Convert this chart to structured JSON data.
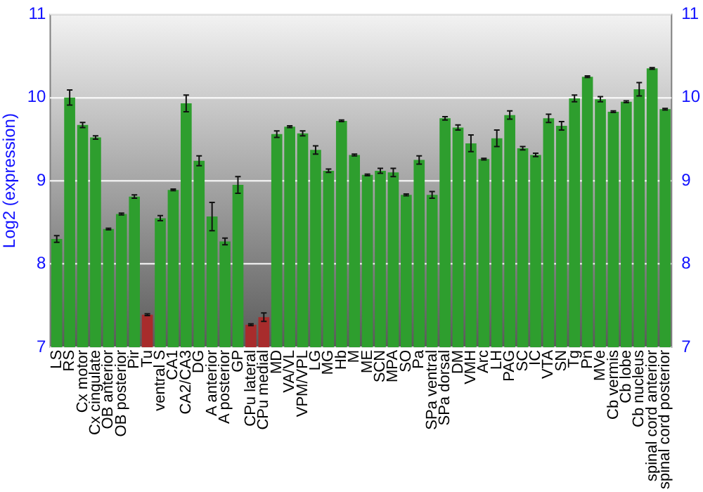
{
  "chart_data": {
    "type": "bar",
    "ylabel": "Log2 (expression)",
    "categories": [
      "LS",
      "RS",
      "Cx motor",
      "Cx cingulate",
      "OB anterior",
      "OB posterior",
      "Pir",
      "Tu",
      "ventral S",
      "CA1",
      "CA2/CA3",
      "DG",
      "A anterior",
      "A posterior",
      "GP",
      "CPu lateral",
      "CPu medial",
      "MD",
      "VA/VL",
      "VPM/VPL",
      "LG",
      "MG",
      "Hb",
      "M",
      "ME",
      "SCN",
      "MPA",
      "SO",
      "Pa",
      "SPa ventral",
      "SPa dorsal",
      "DM",
      "VMH",
      "Arc",
      "LH",
      "PAG",
      "SC",
      "IC",
      "VTA",
      "SN",
      "Tg",
      "Pn",
      "MVe",
      "Cb vermis",
      "Cb lobe",
      "Cb nucleus",
      "spinal cord anterior",
      "spinal cord posterior"
    ],
    "values": [
      8.3,
      10.0,
      9.67,
      9.52,
      8.42,
      8.6,
      8.81,
      7.39,
      8.55,
      8.89,
      9.93,
      9.24,
      8.57,
      8.27,
      8.95,
      7.27,
      7.36,
      9.56,
      9.65,
      9.57,
      9.37,
      9.12,
      9.72,
      9.31,
      9.07,
      9.12,
      9.1,
      8.83,
      9.25,
      8.83,
      9.75,
      9.64,
      9.45,
      9.26,
      9.51,
      9.79,
      9.39,
      9.31,
      9.75,
      9.66,
      9.99,
      10.25,
      9.98,
      9.83,
      9.95,
      10.1,
      10.35,
      9.86
    ],
    "errors": [
      0.04,
      0.09,
      0.03,
      0.02,
      0.01,
      0.01,
      0.02,
      0.01,
      0.03,
      0.01,
      0.1,
      0.06,
      0.17,
      0.04,
      0.1,
      0.01,
      0.05,
      0.04,
      0.01,
      0.03,
      0.05,
      0.02,
      0.01,
      0.01,
      0.01,
      0.03,
      0.05,
      0.01,
      0.05,
      0.04,
      0.02,
      0.03,
      0.1,
      0.01,
      0.1,
      0.05,
      0.02,
      0.02,
      0.05,
      0.05,
      0.04,
      0.01,
      0.03,
      0.01,
      0.01,
      0.08,
      0.01,
      0.01
    ],
    "colors": [
      "#2e9e2e",
      "#2e9e2e",
      "#2e9e2e",
      "#2e9e2e",
      "#2e9e2e",
      "#2e9e2e",
      "#2e9e2e",
      "#a82c2c",
      "#2e9e2e",
      "#2e9e2e",
      "#2e9e2e",
      "#2e9e2e",
      "#2e9e2e",
      "#2e9e2e",
      "#2e9e2e",
      "#a82c2c",
      "#a82c2c",
      "#2e9e2e",
      "#2e9e2e",
      "#2e9e2e",
      "#2e9e2e",
      "#2e9e2e",
      "#2e9e2e",
      "#2e9e2e",
      "#2e9e2e",
      "#2e9e2e",
      "#2e9e2e",
      "#2e9e2e",
      "#2e9e2e",
      "#2e9e2e",
      "#2e9e2e",
      "#2e9e2e",
      "#2e9e2e",
      "#2e9e2e",
      "#2e9e2e",
      "#2e9e2e",
      "#2e9e2e",
      "#2e9e2e",
      "#2e9e2e",
      "#2e9e2e",
      "#2e9e2e",
      "#2e9e2e",
      "#2e9e2e",
      "#2e9e2e",
      "#2e9e2e",
      "#2e9e2e",
      "#2e9e2e",
      "#2e9e2e"
    ],
    "ylim": [
      7,
      11
    ],
    "yticks": [
      7,
      8,
      9,
      10,
      11
    ],
    "y2lim": [
      7,
      11
    ],
    "y2ticks": [
      7,
      8,
      9,
      10,
      11
    ],
    "grid": "y",
    "legend": false
  }
}
